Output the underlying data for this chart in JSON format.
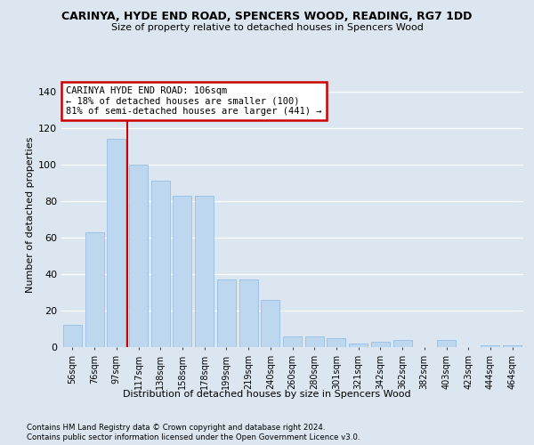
{
  "title": "CARINYA, HYDE END ROAD, SPENCERS WOOD, READING, RG7 1DD",
  "subtitle": "Size of property relative to detached houses in Spencers Wood",
  "xlabel": "Distribution of detached houses by size in Spencers Wood",
  "ylabel": "Number of detached properties",
  "footnote1": "Contains HM Land Registry data © Crown copyright and database right 2024.",
  "footnote2": "Contains public sector information licensed under the Open Government Licence v3.0.",
  "categories": [
    "56sqm",
    "76sqm",
    "97sqm",
    "117sqm",
    "138sqm",
    "158sqm",
    "178sqm",
    "199sqm",
    "219sqm",
    "240sqm",
    "260sqm",
    "280sqm",
    "301sqm",
    "321sqm",
    "342sqm",
    "362sqm",
    "382sqm",
    "403sqm",
    "423sqm",
    "444sqm",
    "464sqm"
  ],
  "values": [
    12,
    63,
    114,
    100,
    91,
    83,
    83,
    37,
    37,
    26,
    6,
    6,
    5,
    2,
    3,
    4,
    0,
    4,
    0,
    1,
    1
  ],
  "bar_color": "#bdd7ee",
  "bar_edge_color": "#9dc3e6",
  "background_color": "#dce6f1",
  "plot_bg_color": "#dce6f1",
  "grid_color": "#ffffff",
  "redline_x": 2.5,
  "annotation_text": "CARINYA HYDE END ROAD: 106sqm\n← 18% of detached houses are smaller (100)\n81% of semi-detached houses are larger (441) →",
  "annotation_box_color": "#ffffff",
  "annotation_box_edge": "#cc0000",
  "redline_color": "#cc0000",
  "ylim": [
    0,
    145
  ],
  "yticks": [
    0,
    20,
    40,
    60,
    80,
    100,
    120,
    140
  ]
}
